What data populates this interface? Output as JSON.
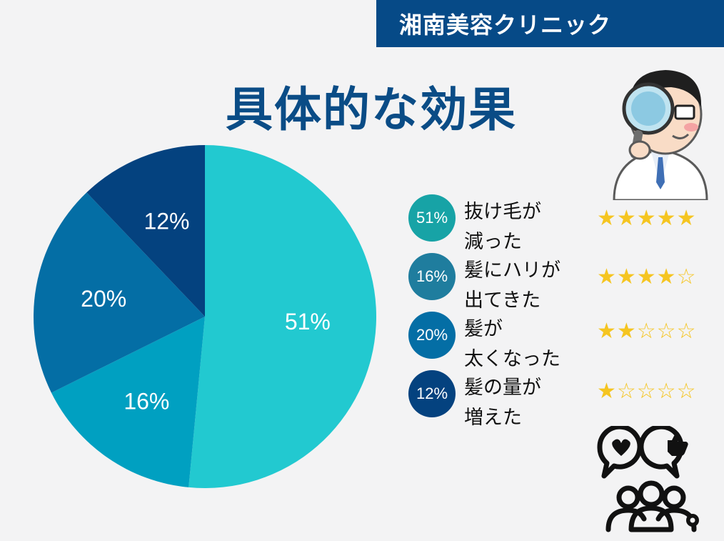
{
  "brand": {
    "name": "湘南美容クリニック"
  },
  "title": "具体的な効果",
  "colors": {
    "banner": "#064a87",
    "title": "#0a4c86",
    "star": "#f5c521"
  },
  "chart_data": {
    "type": "pie",
    "slices": [
      {
        "label": "抜け毛が減った",
        "value": 51,
        "display": "51%",
        "color": "#22c9d0",
        "legend_color": "#17a3a6",
        "stars": 5
      },
      {
        "label": "髪にハリが出てきた",
        "value": 16,
        "display": "16%",
        "color": "#00a0c1",
        "legend_color": "#1f7d9e",
        "stars": 4
      },
      {
        "label": "髪が太くなった",
        "value": 20,
        "display": "20%",
        "color": "#046ea5",
        "legend_color": "#046ea5",
        "stars": 2
      },
      {
        "label": "髪の量が増えた",
        "value": 12,
        "display": "12%",
        "color": "#04427f",
        "legend_color": "#04427f",
        "stars": 1
      }
    ]
  },
  "legend": [
    {
      "pct": "51%",
      "line1": "抜け毛が",
      "line2": "減った",
      "stars": "★★★★★"
    },
    {
      "pct": "16%",
      "line1": "髪にハリが",
      "line2": "出てきた",
      "stars": "★★★★☆"
    },
    {
      "pct": "20%",
      "line1": "髪が",
      "line2": "太くなった",
      "stars": "★★☆☆☆"
    },
    {
      "pct": "12%",
      "line1": "髪の量が",
      "line2": "増えた",
      "stars": "★☆☆☆☆"
    }
  ],
  "icons": {
    "doctor": "doctor-with-magnifier-icon",
    "community": "community-feedback-icon"
  }
}
